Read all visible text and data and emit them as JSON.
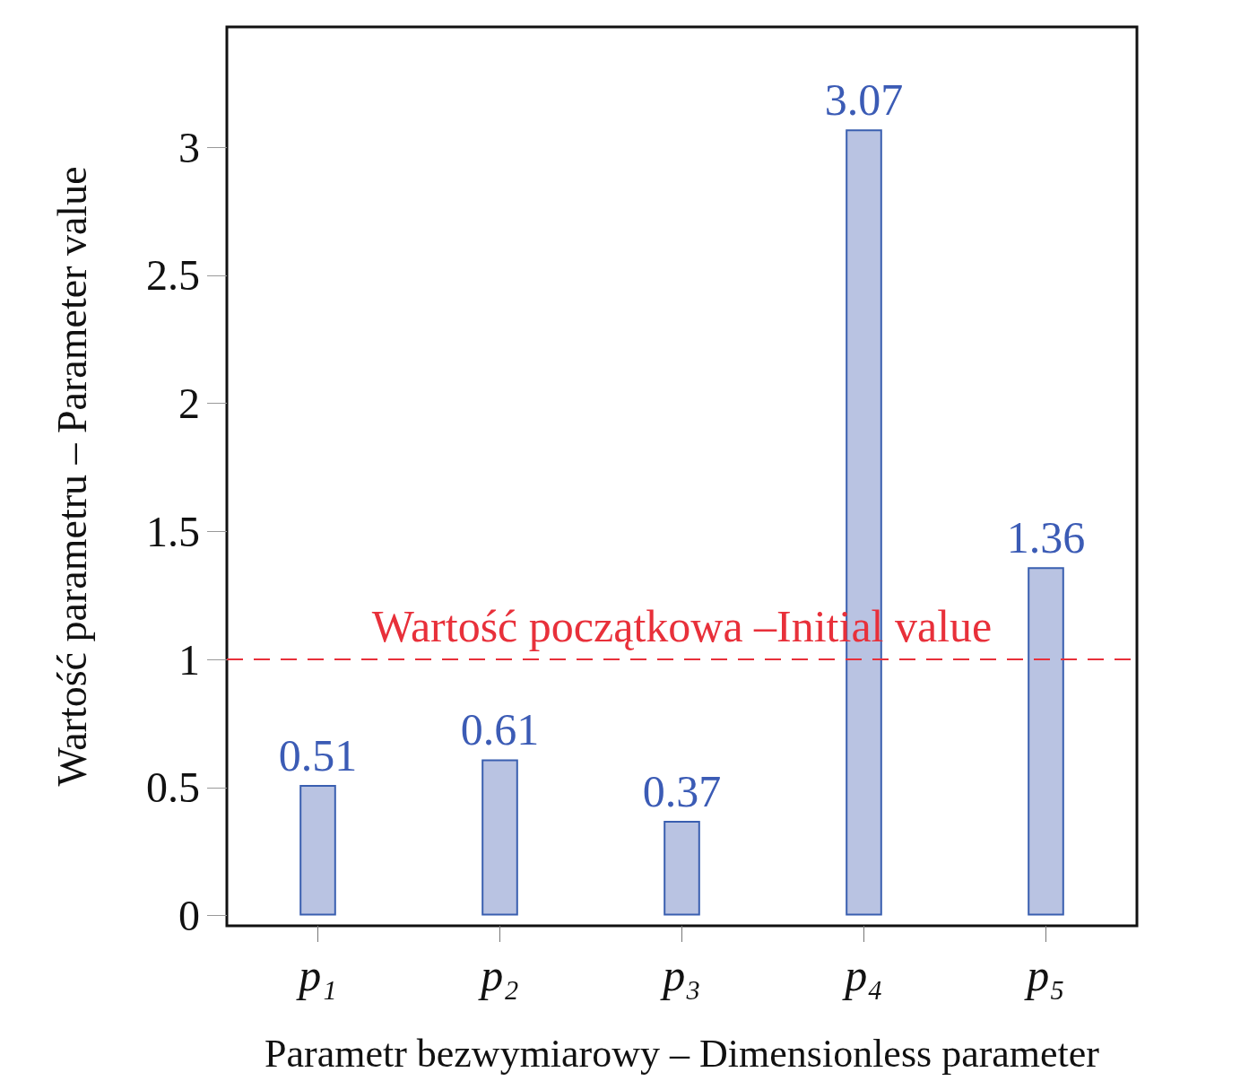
{
  "chart_data": {
    "type": "bar",
    "xlabel": "Parametr bezwymiarowy – Dimensionless parameter",
    "ylabel": "Wartość parametru – Parameter value",
    "categories": [
      "p₁",
      "p₂",
      "p₃",
      "p₄",
      "p₅"
    ],
    "values": [
      0.51,
      0.61,
      0.37,
      3.07,
      1.36
    ],
    "color": "#b9c3e2",
    "data_labels": true,
    "ylim": [
      -0.04,
      3.47
    ],
    "yticks": [
      0,
      0.5,
      1,
      1.5,
      2,
      2.5,
      3
    ],
    "ref_lines": [
      {
        "axis": "y",
        "value": 1,
        "label": "Wartość początkowa –Initial value",
        "color": "#e8303a",
        "line_style": "dashed"
      }
    ],
    "grid": false
  }
}
